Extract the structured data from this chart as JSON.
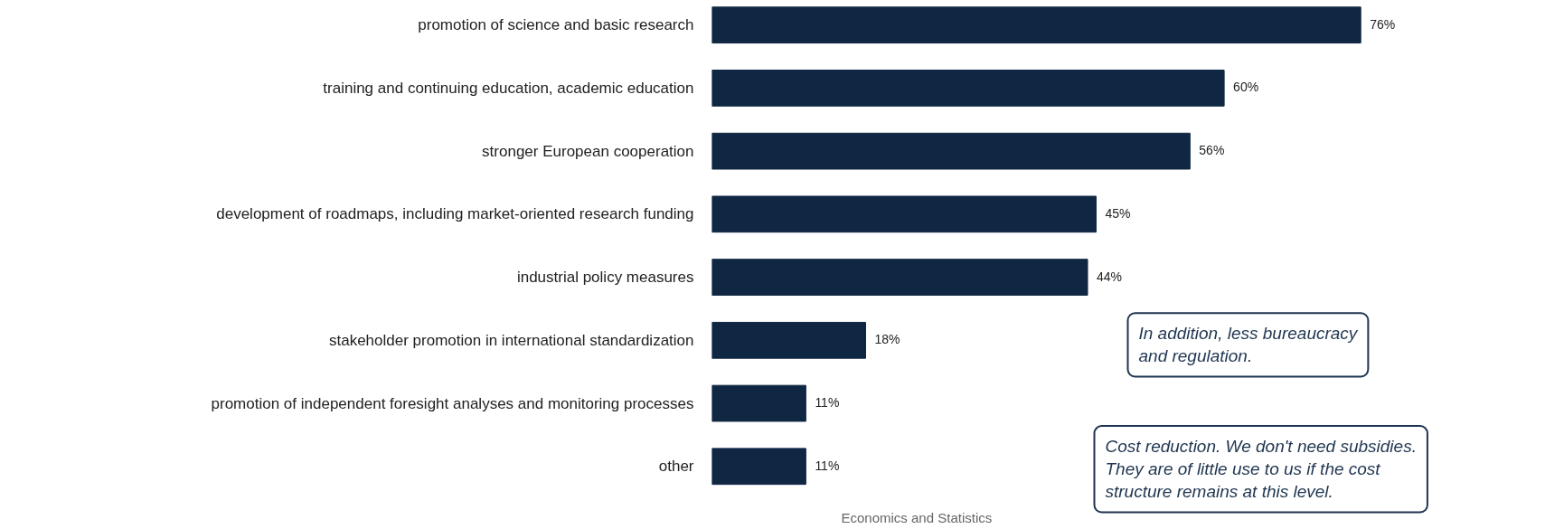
{
  "chart_data": {
    "type": "bar",
    "orientation": "horizontal",
    "categories": [
      "promotion of science and basic research",
      "training and continuing education, academic education",
      "stronger European cooperation",
      "development of roadmaps, including market-oriented research funding",
      "industrial policy measures",
      "stakeholder promotion in international standardization",
      "promotion of independent foresight analyses and monitoring processes",
      "other"
    ],
    "values": [
      76,
      60,
      56,
      45,
      44,
      18,
      11,
      11
    ],
    "value_labels": [
      "76%",
      "60%",
      "56%",
      "45%",
      "44%",
      "18%",
      "11%",
      "11%"
    ],
    "color": "#0f2742",
    "grid": false,
    "annotations": [
      "In addition, less bureaucracy\nand regulation.",
      "Cost reduction. We don't need subsidies.\nThey are of little use to us if the cost\nstructure remains at this level.",
      "Economics and Statistics"
    ]
  }
}
